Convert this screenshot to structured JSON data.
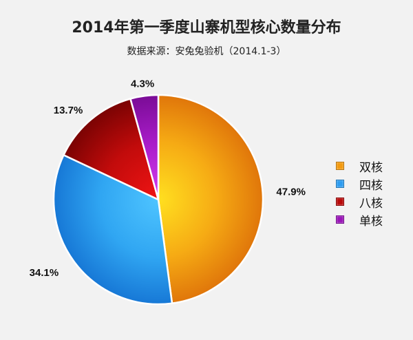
{
  "title": "2014年第一季度山寨机型核心数量分布",
  "subtitle": "数据来源：安兔兔验机（2014.1-3）",
  "chart_data": {
    "type": "pie",
    "categories": [
      "双核",
      "四核",
      "八核",
      "单核"
    ],
    "values": [
      47.9,
      34.1,
      13.7,
      4.3
    ],
    "labels": [
      "47.9%",
      "34.1%",
      "13.7%",
      "4.3%"
    ],
    "colors": [
      "#f39a10",
      "#2d9cf0",
      "#b80a0a",
      "#9a16b8"
    ],
    "legend_position": "right"
  }
}
